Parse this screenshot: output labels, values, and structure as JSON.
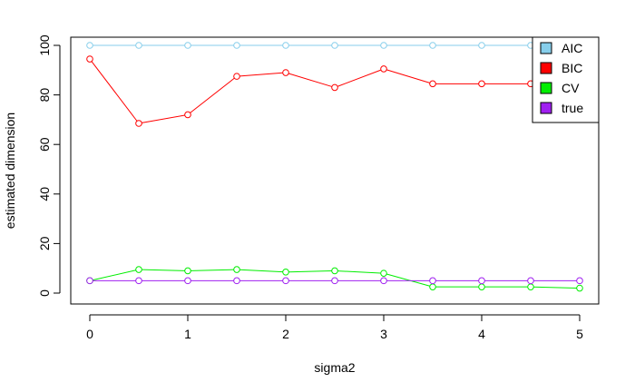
{
  "chart_data": {
    "type": "line",
    "title": "",
    "xlabel": "sigma2",
    "ylabel": "estimated dimension",
    "xlim": [
      0,
      5
    ],
    "ylim": [
      0,
      100
    ],
    "x": [
      0,
      0.5,
      1,
      1.5,
      2,
      2.5,
      3,
      3.5,
      4,
      4.5,
      5
    ],
    "x_ticks": [
      0,
      1,
      2,
      3,
      4,
      5
    ],
    "y_ticks": [
      0,
      20,
      40,
      60,
      80,
      100
    ],
    "grid": false,
    "legend_position": "top-right",
    "series": [
      {
        "name": "AIC",
        "color": "#87ceeb",
        "values": [
          100,
          100,
          100,
          100,
          100,
          100,
          100,
          100,
          100,
          100,
          100
        ]
      },
      {
        "name": "BIC",
        "color": "#ff0000",
        "values": [
          94.5,
          68.5,
          72,
          87.5,
          89,
          83,
          90.5,
          84.5,
          84.5,
          84.5,
          84.5
        ]
      },
      {
        "name": "CV",
        "color": "#00ee00",
        "values": [
          5,
          9.5,
          9,
          9.5,
          8.5,
          9,
          8,
          2.5,
          2.5,
          2.5,
          2
        ]
      },
      {
        "name": "true",
        "color": "#a020f0",
        "values": [
          5,
          5,
          5,
          5,
          5,
          5,
          5,
          5,
          5,
          5,
          5
        ]
      }
    ]
  }
}
